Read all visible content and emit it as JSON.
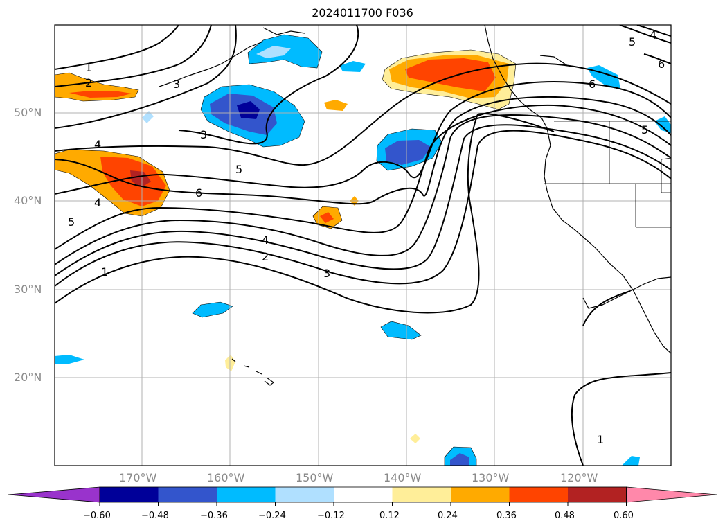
{
  "title": "2024011700 F036",
  "map": {
    "lat_labels": [
      "50°N",
      "40°N",
      "30°N",
      "20°N"
    ],
    "lon_labels": [
      "170°W",
      "160°W",
      "150°W",
      "140°W",
      "130°W",
      "120°W"
    ],
    "contour_labels": [
      "1",
      "2",
      "3",
      "3",
      "4",
      "5",
      "6",
      "4",
      "5",
      "4",
      "2",
      "1",
      "3",
      "5",
      "4",
      "6",
      "6",
      "5",
      "1"
    ]
  },
  "colorbar": {
    "colors": [
      "#9933cc",
      "#000099",
      "#3355cc",
      "#00bbff",
      "#b0e0ff",
      "#ffffff",
      "#ffee99",
      "#ffaa00",
      "#ff4400",
      "#b22222",
      "#ff88aa"
    ],
    "labels": [
      "−0.60",
      "−0.48",
      "−0.36",
      "−0.24",
      "−0.12",
      "0.12",
      "0.24",
      "0.36",
      "0.48",
      "0.60"
    ]
  }
}
